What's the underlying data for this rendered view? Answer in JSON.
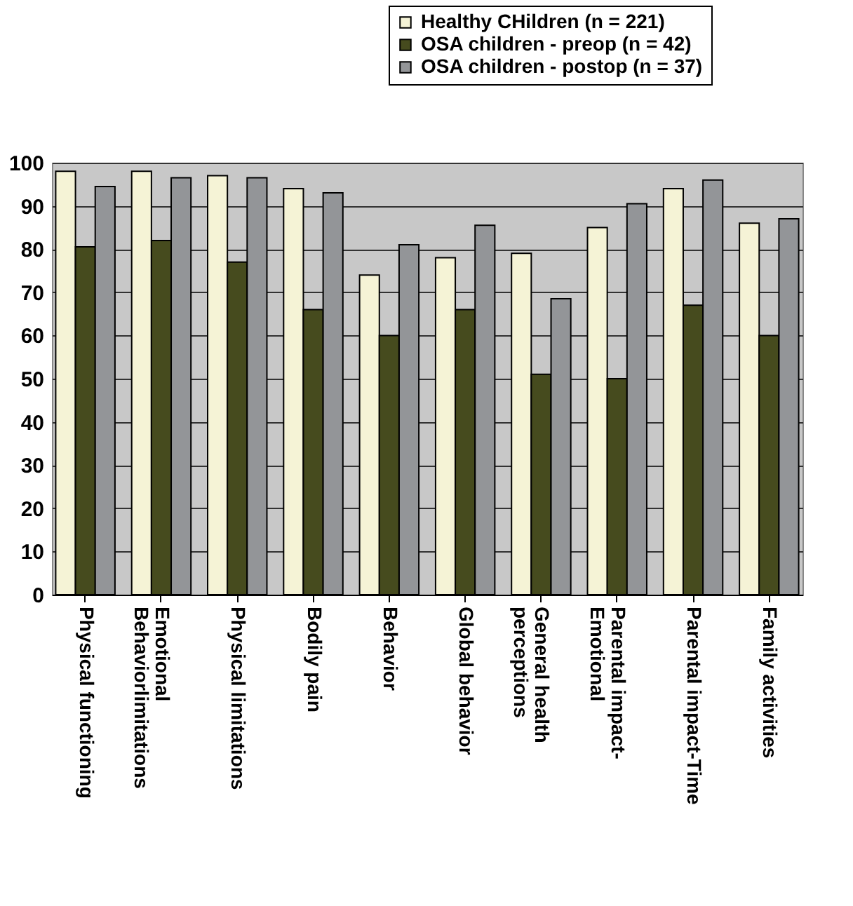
{
  "chart_data": {
    "type": "bar",
    "categories": [
      "Physical  functioning",
      "Emotional\nBehaviorlimitations",
      "Physical limitations",
      "Bodily pain",
      "Behavior",
      "Global behavior",
      "General health\nperceptions",
      "Parental impact-\nEmotional",
      "Parental impact-Time",
      "Family activities"
    ],
    "series": [
      {
        "name": "Healthy CHildren (n = 221)",
        "color": "#f5f3d6",
        "values": [
          98,
          98,
          97,
          94,
          74,
          78,
          79,
          85,
          94,
          86
        ]
      },
      {
        "name": "OSA children - preop (n = 42)",
        "color": "#464b1e",
        "values": [
          80.5,
          82,
          77,
          66,
          60,
          66,
          51,
          50,
          67,
          60
        ]
      },
      {
        "name": "OSA children - postop (n = 37)",
        "color": "#939598",
        "values": [
          94.5,
          96.5,
          96.5,
          93,
          81,
          85.5,
          68.5,
          90.5,
          96,
          87
        ]
      }
    ],
    "ylim": [
      0,
      100
    ],
    "yticks": [
      0,
      10,
      20,
      30,
      40,
      50,
      60,
      70,
      80,
      90,
      100
    ],
    "grid": "y",
    "legend": "top right"
  }
}
